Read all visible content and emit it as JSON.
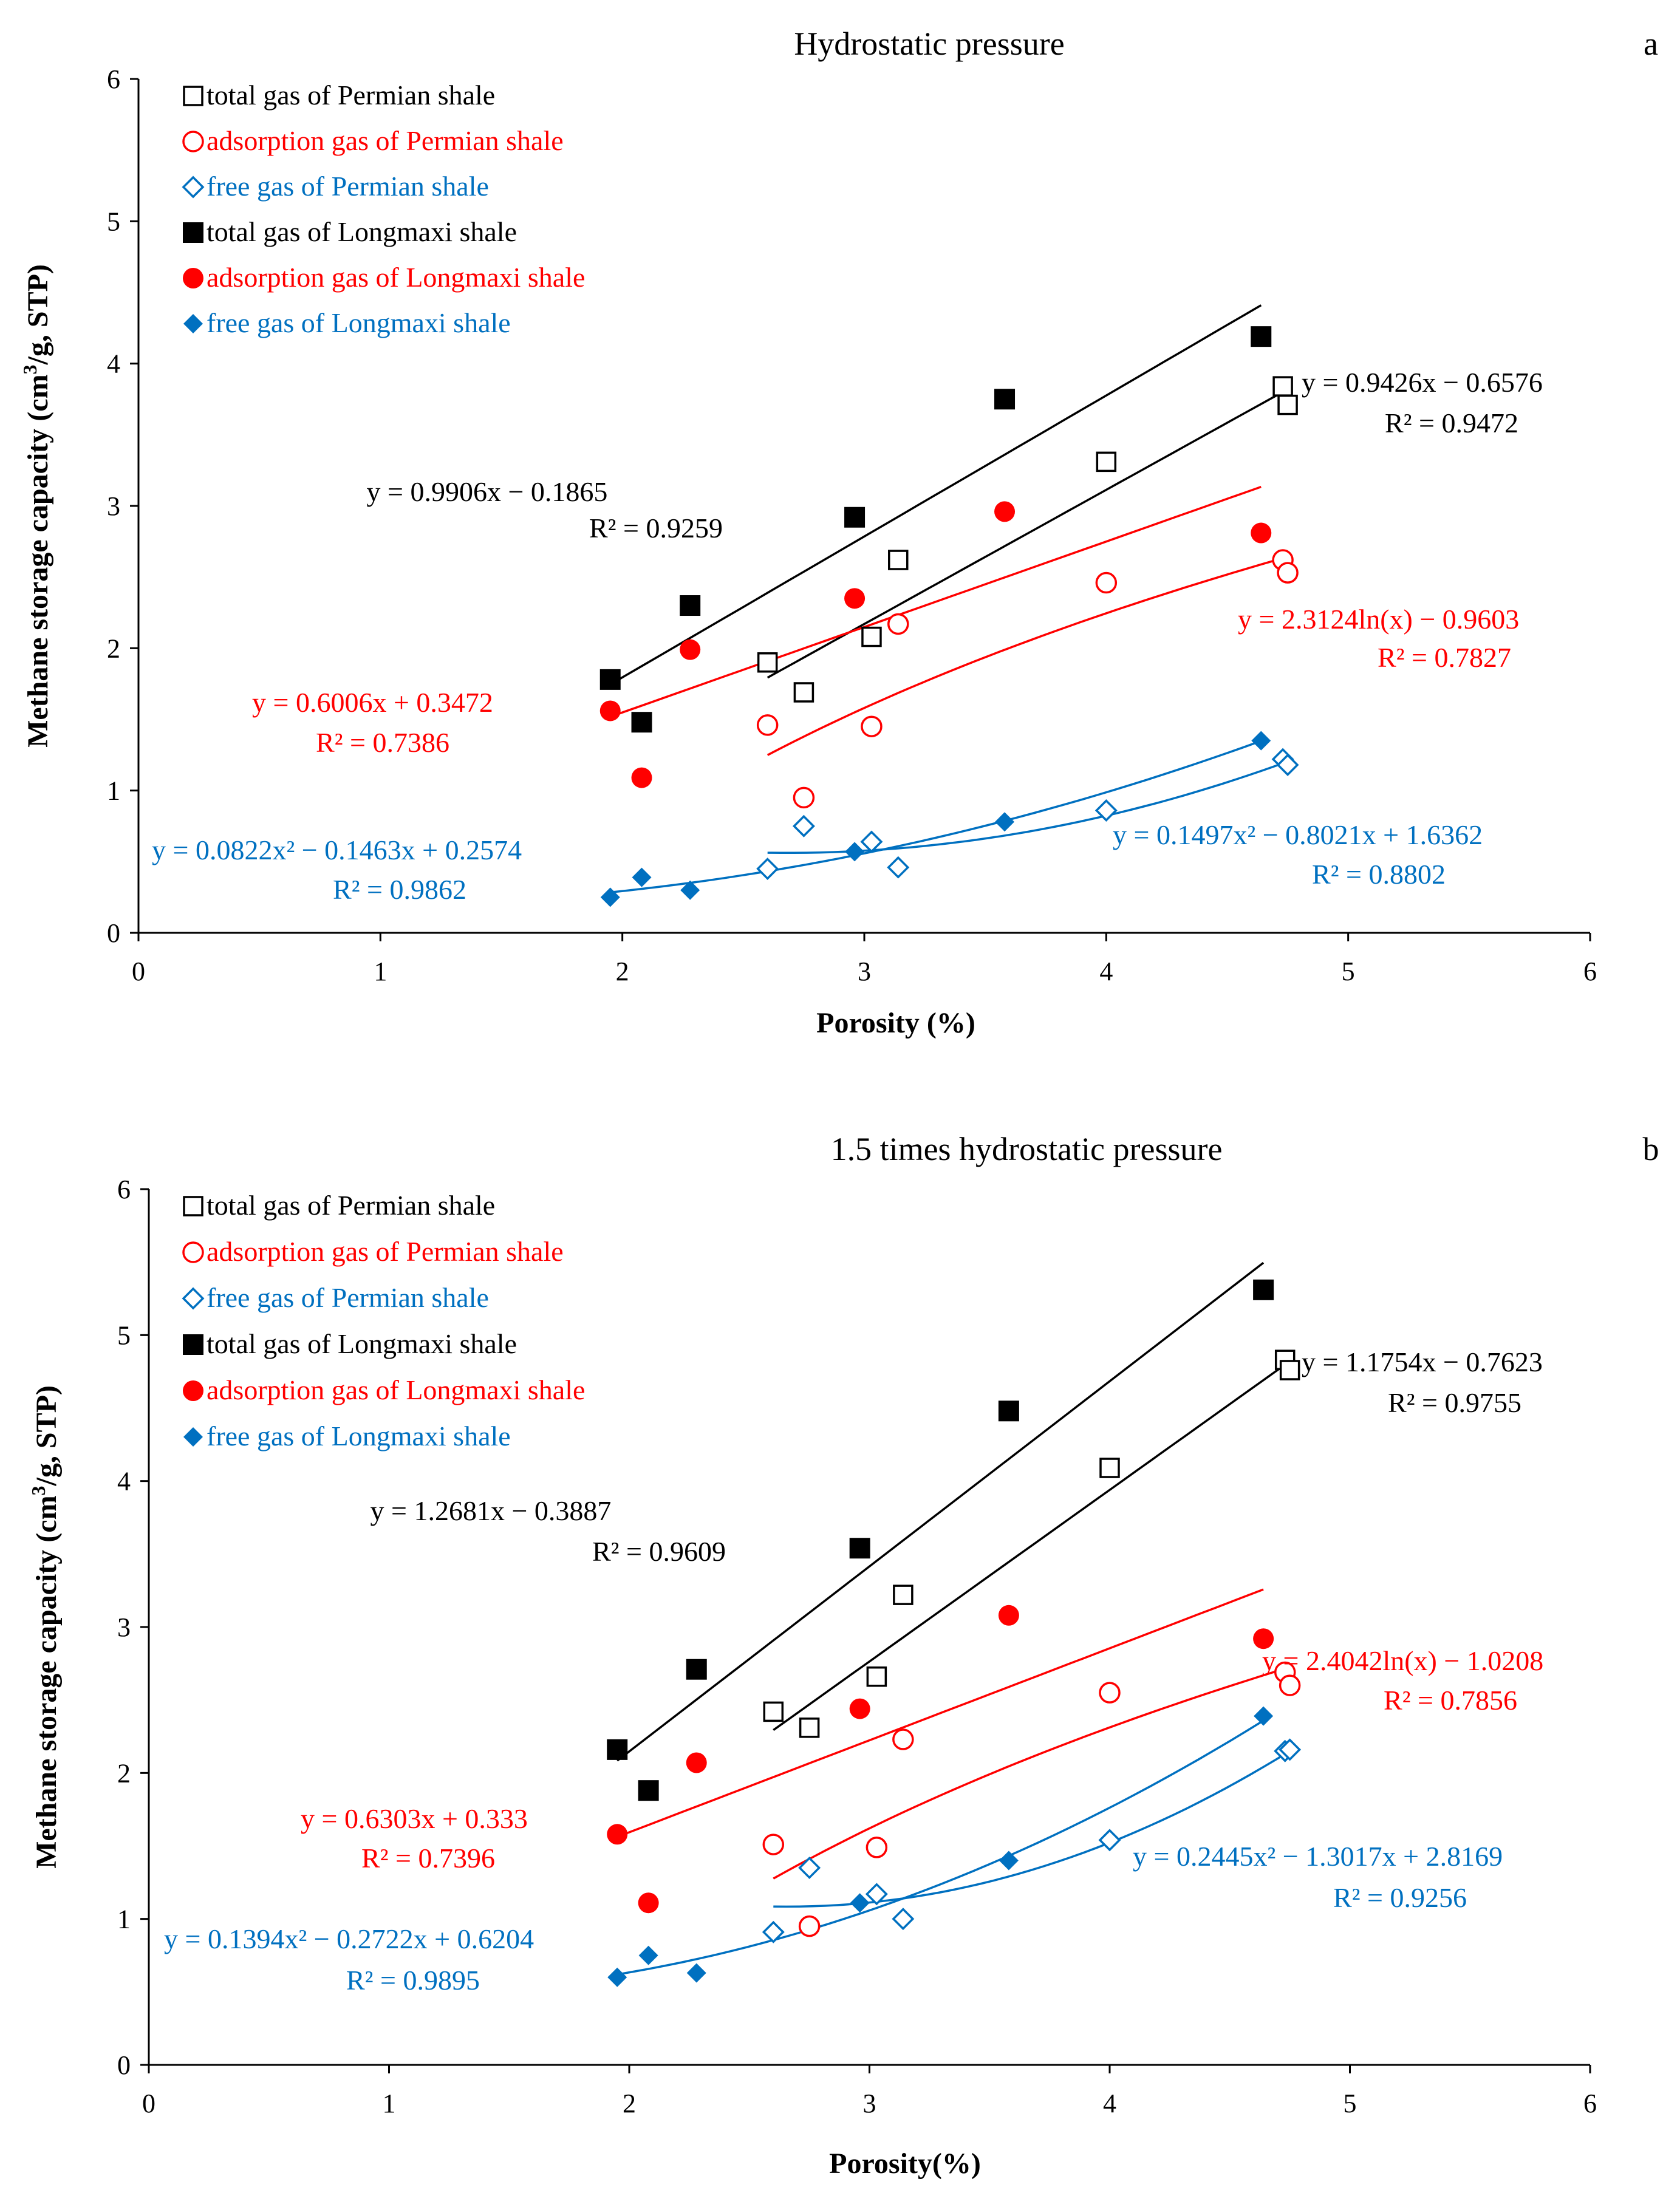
{
  "chart_data": [
    {
      "type": "scatter",
      "panel": "a",
      "title": "Hydrostatic pressure",
      "xlabel": "Porosity (%)",
      "ylabel": "Methane storage capacity (cm³/g, STP)",
      "ylabel_parts": [
        "Methane storage capacity (cm",
        "3",
        "/g, STP)"
      ],
      "xlim": [
        0,
        6
      ],
      "ylim": [
        0,
        6
      ],
      "xticks": [
        "0",
        "1",
        "2",
        "3",
        "4",
        "5",
        "6"
      ],
      "yticks": [
        "0",
        "1",
        "2",
        "3",
        "4",
        "5",
        "6"
      ],
      "legend": "top-left",
      "series": [
        {
          "name": "total gas of Permian shale",
          "marker": "square-open",
          "color": "#000000",
          "x": [
            2.6,
            2.75,
            3.03,
            3.14,
            4.0,
            4.73,
            4.75
          ],
          "y": [
            1.9,
            1.69,
            2.08,
            2.62,
            3.31,
            3.84,
            3.71
          ]
        },
        {
          "name": "adsorption gas of Permian shale",
          "marker": "circle-open",
          "color": "#ff0000",
          "x": [
            2.6,
            2.75,
            3.03,
            3.14,
            4.0,
            4.73,
            4.75
          ],
          "y": [
            1.46,
            0.95,
            1.45,
            2.17,
            2.46,
            2.62,
            2.53
          ]
        },
        {
          "name": "free gas of Permian shale",
          "marker": "diamond-open",
          "color": "#0070c0",
          "x": [
            2.6,
            2.75,
            3.03,
            3.14,
            4.0,
            4.73,
            4.75
          ],
          "y": [
            0.45,
            0.75,
            0.64,
            0.46,
            0.86,
            1.22,
            1.18
          ]
        },
        {
          "name": "total gas of Longmaxi shale",
          "marker": "square-filled",
          "color": "#000000",
          "x": [
            1.95,
            2.08,
            2.28,
            2.96,
            3.58,
            4.64
          ],
          "y": [
            1.78,
            1.48,
            2.3,
            2.92,
            3.75,
            4.19
          ]
        },
        {
          "name": "adsorption gas of Longmaxi shale",
          "marker": "circle-filled",
          "color": "#ff0000",
          "x": [
            1.95,
            2.08,
            2.28,
            2.96,
            3.58,
            4.64
          ],
          "y": [
            1.56,
            1.09,
            1.99,
            2.35,
            2.96,
            2.81
          ]
        },
        {
          "name": "free gas of Longmaxi shale",
          "marker": "diamond-filled",
          "color": "#0070c0",
          "x": [
            1.95,
            2.08,
            2.28,
            2.96,
            3.58,
            4.64
          ],
          "y": [
            0.25,
            0.39,
            0.3,
            0.57,
            0.78,
            1.35
          ]
        }
      ],
      "fits": [
        {
          "series": "total gas of Longmaxi shale",
          "kind": "linear",
          "coef": [
            0.9906,
            -0.1865
          ],
          "range": [
            1.95,
            4.64
          ],
          "color": "#000000",
          "equation": "y = 0.9906x − 0.1865",
          "r2": "R² = 0.9259"
        },
        {
          "series": "total gas of Permian shale",
          "kind": "linear",
          "coef": [
            0.9426,
            -0.6576
          ],
          "range": [
            2.6,
            4.75
          ],
          "color": "#000000",
          "equation": "y = 0.9426x − 0.6576",
          "r2": "R² = 0.9472"
        },
        {
          "series": "adsorption gas of Longmaxi shale",
          "kind": "linear",
          "coef": [
            0.6006,
            0.3472
          ],
          "range": [
            1.95,
            4.64
          ],
          "color": "#ff0000",
          "equation": "y = 0.6006x + 0.3472",
          "r2": "R² = 0.7386"
        },
        {
          "series": "adsorption gas of Permian shale",
          "kind": "log",
          "coef": [
            2.3124,
            -0.9603
          ],
          "range": [
            2.6,
            4.75
          ],
          "color": "#ff0000",
          "equation": "y = 2.3124ln(x) − 0.9603",
          "r2": "R² = 0.7827"
        },
        {
          "series": "free gas of Longmaxi shale",
          "kind": "poly2",
          "coef": [
            0.0822,
            -0.1463,
            0.2574
          ],
          "range": [
            1.95,
            4.64
          ],
          "color": "#0070c0",
          "equation": "y = 0.0822x² − 0.1463x + 0.2574",
          "r2": "R² = 0.9862"
        },
        {
          "series": "free gas of Permian shale",
          "kind": "poly2",
          "coef": [
            0.1497,
            -0.8021,
            1.6362
          ],
          "range": [
            2.6,
            4.75
          ],
          "color": "#0070c0",
          "equation": "y = 0.1497x² − 0.8021x + 1.6362",
          "r2": "R² = 0.8802"
        }
      ]
    },
    {
      "type": "scatter",
      "panel": "b",
      "title": "1.5 times hydrostatic pressure",
      "xlabel": "Porosity(%)",
      "ylabel": "Methane storage capacity (cm³/g, STP)",
      "ylabel_parts": [
        "Methane storage capacity (cm",
        "3",
        "/g, STP)"
      ],
      "xlim": [
        0,
        6
      ],
      "ylim": [
        0,
        6
      ],
      "xticks": [
        "0",
        "1",
        "2",
        "3",
        "4",
        "5",
        "6"
      ],
      "yticks": [
        "0",
        "1",
        "2",
        "3",
        "4",
        "5",
        "6"
      ],
      "legend": "top-left",
      "series": [
        {
          "name": "total gas of Permian shale",
          "marker": "square-open",
          "color": "#000000",
          "x": [
            2.6,
            2.75,
            3.03,
            3.14,
            4.0,
            4.73,
            4.75
          ],
          "y": [
            2.42,
            2.31,
            2.66,
            3.22,
            4.09,
            4.83,
            4.76
          ]
        },
        {
          "name": "adsorption gas of Permian shale",
          "marker": "circle-open",
          "color": "#ff0000",
          "x": [
            2.6,
            2.75,
            3.03,
            3.14,
            4.0,
            4.73,
            4.75
          ],
          "y": [
            1.51,
            0.95,
            1.49,
            2.23,
            2.55,
            2.69,
            2.6
          ]
        },
        {
          "name": "free gas of Permian shale",
          "marker": "diamond-open",
          "color": "#0070c0",
          "x": [
            2.6,
            2.75,
            3.03,
            3.14,
            4.0,
            4.73,
            4.75
          ],
          "y": [
            0.91,
            1.35,
            1.17,
            1.0,
            1.54,
            2.15,
            2.16
          ]
        },
        {
          "name": "total gas of Longmaxi shale",
          "marker": "square-filled",
          "color": "#000000",
          "x": [
            1.95,
            2.08,
            2.28,
            2.96,
            3.58,
            4.64
          ],
          "y": [
            2.16,
            1.88,
            2.71,
            3.54,
            4.48,
            5.31
          ]
        },
        {
          "name": "adsorption gas of Longmaxi shale",
          "marker": "circle-filled",
          "color": "#ff0000",
          "x": [
            1.95,
            2.08,
            2.28,
            2.96,
            3.58,
            4.64
          ],
          "y": [
            1.58,
            1.11,
            2.07,
            2.44,
            3.08,
            2.92
          ]
        },
        {
          "name": "free gas of Longmaxi shale",
          "marker": "diamond-filled",
          "color": "#0070c0",
          "x": [
            1.95,
            2.08,
            2.28,
            2.96,
            3.58,
            4.64
          ],
          "y": [
            0.6,
            0.75,
            0.63,
            1.11,
            1.4,
            2.39
          ]
        }
      ],
      "fits": [
        {
          "series": "total gas of Longmaxi shale",
          "kind": "linear",
          "coef": [
            1.2681,
            -0.3887
          ],
          "range": [
            1.95,
            4.64
          ],
          "color": "#000000",
          "equation": "y = 1.2681x − 0.3887",
          "r2": "R² = 0.9609"
        },
        {
          "series": "total gas of Permian shale",
          "kind": "linear",
          "coef": [
            1.1754,
            -0.7623
          ],
          "range": [
            2.6,
            4.75
          ],
          "color": "#000000",
          "equation": "y = 1.1754x − 0.7623",
          "r2": "R² = 0.9755"
        },
        {
          "series": "adsorption gas of Longmaxi shale",
          "kind": "linear",
          "coef": [
            0.6303,
            0.333
          ],
          "range": [
            1.95,
            4.64
          ],
          "color": "#ff0000",
          "equation": "y = 0.6303x + 0.333",
          "r2": "R² = 0.7396"
        },
        {
          "series": "adsorption gas of Permian shale",
          "kind": "log",
          "coef": [
            2.4042,
            -1.0208
          ],
          "range": [
            2.6,
            4.75
          ],
          "color": "#ff0000",
          "equation": "y = 2.4042ln(x) − 1.0208",
          "r2": "R² = 0.7856"
        },
        {
          "series": "free gas of Longmaxi shale",
          "kind": "poly2",
          "coef": [
            0.1394,
            -0.2722,
            0.6204
          ],
          "range": [
            1.95,
            4.64
          ],
          "color": "#0070c0",
          "equation": "y = 0.1394x² − 0.2722x + 0.6204",
          "r2": "R² = 0.9895"
        },
        {
          "series": "free gas of Permian shale",
          "kind": "poly2",
          "coef": [
            0.2445,
            -1.3017,
            2.8169
          ],
          "range": [
            2.6,
            4.75
          ],
          "color": "#0070c0",
          "equation": "y = 0.2445x² − 1.3017x + 2.8169",
          "r2": "R² = 0.9256"
        }
      ]
    }
  ]
}
